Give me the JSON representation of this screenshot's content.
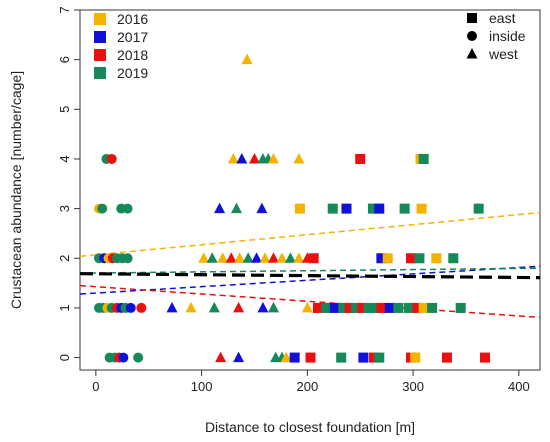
{
  "chart_data": {
    "type": "scatter",
    "title": "",
    "xlabel": "Distance to closest foundation [m]",
    "ylabel": "Crustacean abundance [number/cage]",
    "xlim": [
      -15,
      420
    ],
    "ylim": [
      -0.25,
      7
    ],
    "x_ticks": [
      0,
      100,
      200,
      300,
      400
    ],
    "y_ticks": [
      0,
      1,
      2,
      3,
      4,
      5,
      6,
      7
    ],
    "grid": false,
    "legend_years_position": "top-left",
    "legend_shapes_position": "top-right",
    "years": [
      {
        "name": "2016",
        "color": "#F5B300"
      },
      {
        "name": "2017",
        "color": "#1010D8"
      },
      {
        "name": "2018",
        "color": "#E81010"
      },
      {
        "name": "2019",
        "color": "#15895A"
      }
    ],
    "shapes": [
      {
        "name": "east",
        "shape": "square"
      },
      {
        "name": "inside",
        "shape": "circle"
      },
      {
        "name": "west",
        "shape": "triangle"
      }
    ],
    "points": [
      {
        "x": 143,
        "y": 6,
        "year": "2016",
        "site": "west"
      },
      {
        "x": 10,
        "y": 4,
        "year": "2019",
        "site": "inside"
      },
      {
        "x": 15,
        "y": 4,
        "year": "2018",
        "site": "inside"
      },
      {
        "x": 130,
        "y": 4,
        "year": "2016",
        "site": "west"
      },
      {
        "x": 138,
        "y": 4,
        "year": "2017",
        "site": "west"
      },
      {
        "x": 150,
        "y": 4,
        "year": "2018",
        "site": "west"
      },
      {
        "x": 158,
        "y": 4,
        "year": "2019",
        "site": "west"
      },
      {
        "x": 163,
        "y": 4,
        "year": "2019",
        "site": "west"
      },
      {
        "x": 168,
        "y": 4,
        "year": "2016",
        "site": "west"
      },
      {
        "x": 192,
        "y": 4,
        "year": "2016",
        "site": "west"
      },
      {
        "x": 250,
        "y": 4,
        "year": "2018",
        "site": "east"
      },
      {
        "x": 307,
        "y": 4,
        "year": "2016",
        "site": "east"
      },
      {
        "x": 310,
        "y": 4,
        "year": "2019",
        "site": "east"
      },
      {
        "x": 3,
        "y": 3,
        "year": "2016",
        "site": "inside"
      },
      {
        "x": 6,
        "y": 3,
        "year": "2019",
        "site": "inside"
      },
      {
        "x": 24,
        "y": 3,
        "year": "2019",
        "site": "inside"
      },
      {
        "x": 30,
        "y": 3,
        "year": "2019",
        "site": "inside"
      },
      {
        "x": 117,
        "y": 3,
        "year": "2017",
        "site": "west"
      },
      {
        "x": 133,
        "y": 3,
        "year": "2019",
        "site": "west"
      },
      {
        "x": 157,
        "y": 3,
        "year": "2017",
        "site": "west"
      },
      {
        "x": 193,
        "y": 3,
        "year": "2016",
        "site": "east"
      },
      {
        "x": 224,
        "y": 3,
        "year": "2019",
        "site": "east"
      },
      {
        "x": 237,
        "y": 3,
        "year": "2017",
        "site": "east"
      },
      {
        "x": 262,
        "y": 3,
        "year": "2019",
        "site": "east"
      },
      {
        "x": 268,
        "y": 3,
        "year": "2017",
        "site": "east"
      },
      {
        "x": 292,
        "y": 3,
        "year": "2019",
        "site": "east"
      },
      {
        "x": 308,
        "y": 3,
        "year": "2016",
        "site": "east"
      },
      {
        "x": 362,
        "y": 3,
        "year": "2019",
        "site": "east"
      },
      {
        "x": 3,
        "y": 2,
        "year": "2019",
        "site": "inside"
      },
      {
        "x": 8,
        "y": 2,
        "year": "2017",
        "site": "inside"
      },
      {
        "x": 12,
        "y": 2,
        "year": "2016",
        "site": "inside"
      },
      {
        "x": 16,
        "y": 2,
        "year": "2018",
        "site": "inside"
      },
      {
        "x": 20,
        "y": 2,
        "year": "2019",
        "site": "inside"
      },
      {
        "x": 25,
        "y": 2,
        "year": "2019",
        "site": "inside"
      },
      {
        "x": 30,
        "y": 2,
        "year": "2019",
        "site": "inside"
      },
      {
        "x": 102,
        "y": 2,
        "year": "2016",
        "site": "west"
      },
      {
        "x": 110,
        "y": 2,
        "year": "2019",
        "site": "west"
      },
      {
        "x": 120,
        "y": 2,
        "year": "2016",
        "site": "west"
      },
      {
        "x": 128,
        "y": 2,
        "year": "2018",
        "site": "west"
      },
      {
        "x": 136,
        "y": 2,
        "year": "2016",
        "site": "west"
      },
      {
        "x": 144,
        "y": 2,
        "year": "2019",
        "site": "west"
      },
      {
        "x": 152,
        "y": 2,
        "year": "2017",
        "site": "west"
      },
      {
        "x": 160,
        "y": 2,
        "year": "2016",
        "site": "west"
      },
      {
        "x": 168,
        "y": 2,
        "year": "2018",
        "site": "west"
      },
      {
        "x": 176,
        "y": 2,
        "year": "2016",
        "site": "west"
      },
      {
        "x": 184,
        "y": 2,
        "year": "2019",
        "site": "west"
      },
      {
        "x": 192,
        "y": 2,
        "year": "2016",
        "site": "west"
      },
      {
        "x": 200,
        "y": 2,
        "year": "2018",
        "site": "west"
      },
      {
        "x": 206,
        "y": 2,
        "year": "2018",
        "site": "east"
      },
      {
        "x": 270,
        "y": 2,
        "year": "2017",
        "site": "east"
      },
      {
        "x": 276,
        "y": 2,
        "year": "2016",
        "site": "east"
      },
      {
        "x": 298,
        "y": 2,
        "year": "2018",
        "site": "east"
      },
      {
        "x": 306,
        "y": 2,
        "year": "2019",
        "site": "east"
      },
      {
        "x": 322,
        "y": 2,
        "year": "2016",
        "site": "east"
      },
      {
        "x": 338,
        "y": 2,
        "year": "2019",
        "site": "east"
      },
      {
        "x": 3,
        "y": 1,
        "year": "2019",
        "site": "inside"
      },
      {
        "x": 7,
        "y": 1,
        "year": "2019",
        "site": "inside"
      },
      {
        "x": 11,
        "y": 1,
        "year": "2016",
        "site": "inside"
      },
      {
        "x": 15,
        "y": 1,
        "year": "2019",
        "site": "inside"
      },
      {
        "x": 20,
        "y": 1,
        "year": "2018",
        "site": "inside"
      },
      {
        "x": 24,
        "y": 1,
        "year": "2017",
        "site": "inside"
      },
      {
        "x": 28,
        "y": 1,
        "year": "2019",
        "site": "inside"
      },
      {
        "x": 33,
        "y": 1,
        "year": "2017",
        "site": "inside"
      },
      {
        "x": 43,
        "y": 1,
        "year": "2018",
        "site": "inside"
      },
      {
        "x": 72,
        "y": 1,
        "year": "2017",
        "site": "west"
      },
      {
        "x": 90,
        "y": 1,
        "year": "2016",
        "site": "west"
      },
      {
        "x": 112,
        "y": 1,
        "year": "2019",
        "site": "west"
      },
      {
        "x": 135,
        "y": 1,
        "year": "2018",
        "site": "west"
      },
      {
        "x": 158,
        "y": 1,
        "year": "2017",
        "site": "west"
      },
      {
        "x": 168,
        "y": 1,
        "year": "2019",
        "site": "west"
      },
      {
        "x": 200,
        "y": 1,
        "year": "2016",
        "site": "west"
      },
      {
        "x": 210,
        "y": 1,
        "year": "2018",
        "site": "east"
      },
      {
        "x": 218,
        "y": 1,
        "year": "2019",
        "site": "east"
      },
      {
        "x": 226,
        "y": 1,
        "year": "2017",
        "site": "east"
      },
      {
        "x": 234,
        "y": 1,
        "year": "2019",
        "site": "east"
      },
      {
        "x": 240,
        "y": 1,
        "year": "2018",
        "site": "east"
      },
      {
        "x": 246,
        "y": 1,
        "year": "2019",
        "site": "east"
      },
      {
        "x": 252,
        "y": 1,
        "year": "2018",
        "site": "east"
      },
      {
        "x": 258,
        "y": 1,
        "year": "2019",
        "site": "east"
      },
      {
        "x": 264,
        "y": 1,
        "year": "2019",
        "site": "east"
      },
      {
        "x": 270,
        "y": 1,
        "year": "2018",
        "site": "east"
      },
      {
        "x": 278,
        "y": 1,
        "year": "2017",
        "site": "east"
      },
      {
        "x": 286,
        "y": 1,
        "year": "2019",
        "site": "east"
      },
      {
        "x": 296,
        "y": 1,
        "year": "2019",
        "site": "east"
      },
      {
        "x": 304,
        "y": 1,
        "year": "2018",
        "site": "east"
      },
      {
        "x": 310,
        "y": 1,
        "year": "2016",
        "site": "east"
      },
      {
        "x": 318,
        "y": 1,
        "year": "2019",
        "site": "east"
      },
      {
        "x": 345,
        "y": 1,
        "year": "2019",
        "site": "east"
      },
      {
        "x": 13,
        "y": 0,
        "year": "2019",
        "site": "inside"
      },
      {
        "x": 18,
        "y": 0,
        "year": "2019",
        "site": "inside"
      },
      {
        "x": 22,
        "y": 0,
        "year": "2018",
        "site": "inside"
      },
      {
        "x": 26,
        "y": 0,
        "year": "2017",
        "site": "inside"
      },
      {
        "x": 40,
        "y": 0,
        "year": "2019",
        "site": "inside"
      },
      {
        "x": 118,
        "y": 0,
        "year": "2018",
        "site": "west"
      },
      {
        "x": 135,
        "y": 0,
        "year": "2017",
        "site": "west"
      },
      {
        "x": 170,
        "y": 0,
        "year": "2019",
        "site": "west"
      },
      {
        "x": 176,
        "y": 0,
        "year": "2019",
        "site": "west"
      },
      {
        "x": 180,
        "y": 0,
        "year": "2016",
        "site": "west"
      },
      {
        "x": 188,
        "y": 0,
        "year": "2017",
        "site": "east"
      },
      {
        "x": 203,
        "y": 0,
        "year": "2018",
        "site": "east"
      },
      {
        "x": 232,
        "y": 0,
        "year": "2019",
        "site": "east"
      },
      {
        "x": 253,
        "y": 0,
        "year": "2017",
        "site": "east"
      },
      {
        "x": 263,
        "y": 0,
        "year": "2018",
        "site": "east"
      },
      {
        "x": 268,
        "y": 0,
        "year": "2019",
        "site": "east"
      },
      {
        "x": 298,
        "y": 0,
        "year": "2018",
        "site": "east"
      },
      {
        "x": 302,
        "y": 0,
        "year": "2016",
        "site": "east"
      },
      {
        "x": 332,
        "y": 0,
        "year": "2018",
        "site": "east"
      },
      {
        "x": 368,
        "y": 0,
        "year": "2018",
        "site": "east"
      }
    ],
    "trend_lines": [
      {
        "year": "2016",
        "color": "#F5B300",
        "x": [
          -15,
          420
        ],
        "y": [
          2.04,
          2.92
        ]
      },
      {
        "year": "2017",
        "color": "#1010D8",
        "x": [
          -15,
          420
        ],
        "y": [
          1.28,
          1.84
        ]
      },
      {
        "year": "2018",
        "color": "#E81010",
        "x": [
          -15,
          420
        ],
        "y": [
          1.45,
          0.81
        ]
      },
      {
        "year": "2019",
        "color": "#15895A",
        "x": [
          -15,
          420
        ],
        "y": [
          1.7,
          1.8
        ]
      },
      {
        "year": "overall",
        "color": "#000000",
        "x": [
          -15,
          420
        ],
        "y": [
          1.69,
          1.61
        ]
      }
    ]
  }
}
